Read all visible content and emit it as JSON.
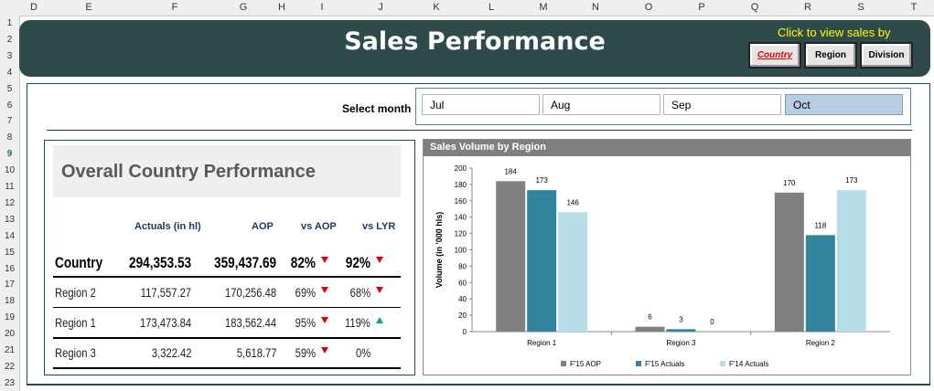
{
  "spreadsheet": {
    "columns": [
      "D",
      "E",
      "F",
      "G",
      "H",
      "I",
      "J",
      "K",
      "L",
      "M",
      "N",
      "O",
      "P",
      "Q",
      "R",
      "S",
      "T"
    ],
    "rows": [
      "1",
      "2",
      "3",
      "4",
      "5",
      "6",
      "7",
      "8",
      "9",
      "10",
      "11",
      "12",
      "13",
      "14",
      "15",
      "16",
      "17",
      "18",
      "19",
      "20",
      "21",
      "22",
      "23"
    ],
    "selected_row": "9"
  },
  "banner": {
    "title": "Sales Performance",
    "view_prompt": "Click to view sales by",
    "buttons": [
      {
        "label": "Country",
        "active": true
      },
      {
        "label": "Region",
        "active": false
      },
      {
        "label": "Division",
        "active": false
      }
    ]
  },
  "month_selector": {
    "label": "Select month",
    "months": [
      "Jul",
      "Aug",
      "Sep",
      "Oct"
    ],
    "selected": "Oct"
  },
  "performance": {
    "title": "Overall Country Performance",
    "headers": {
      "actuals": "Actuals (in hl)",
      "aop": "AOP",
      "vs_aop": "vs AOP",
      "vs_lyr": "vs LYR"
    },
    "rows": [
      {
        "name": "Country",
        "actuals": "294,353.53",
        "aop": "359,437.69",
        "vs_aop": "82%",
        "vs_aop_trend": "down",
        "vs_lyr": "92%",
        "vs_lyr_trend": "down"
      },
      {
        "name": "Region 2",
        "actuals": "117,557.27",
        "aop": "170,256.48",
        "vs_aop": "69%",
        "vs_aop_trend": "down",
        "vs_lyr": "68%",
        "vs_lyr_trend": "down"
      },
      {
        "name": "Region 1",
        "actuals": "173,473.84",
        "aop": "183,562.44",
        "vs_aop": "95%",
        "vs_aop_trend": "down",
        "vs_lyr": "119%",
        "vs_lyr_trend": "up"
      },
      {
        "name": "Region 3",
        "actuals": "3,322.42",
        "aop": "5,618.77",
        "vs_aop": "59%",
        "vs_aop_trend": "down",
        "vs_lyr": "0%",
        "vs_lyr_trend": "none"
      }
    ]
  },
  "chart_data": {
    "type": "bar",
    "title": "Sales Volume by Region",
    "ylabel": "Volume (in '000 hls)",
    "xlabel": "",
    "ylim": [
      0,
      200
    ],
    "yticks": [
      0,
      20,
      40,
      60,
      80,
      100,
      120,
      140,
      160,
      180,
      200
    ],
    "categories": [
      "Region 1",
      "Region 3",
      "Region 2"
    ],
    "series": [
      {
        "name": "F'15 AOP",
        "color": "#808080",
        "values": [
          184,
          6,
          170
        ]
      },
      {
        "name": "F'15 Actuals",
        "color": "#31849b",
        "values": [
          173,
          3,
          118
        ]
      },
      {
        "name": "F'14 Actuals",
        "color": "#b7dde8",
        "values": [
          146,
          0,
          173
        ]
      }
    ],
    "legend": "bottom"
  }
}
